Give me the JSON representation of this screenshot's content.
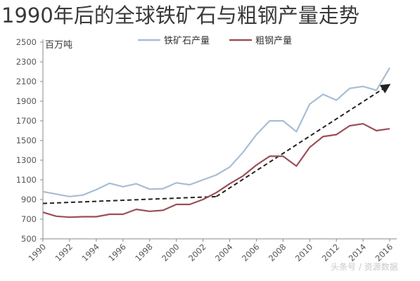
{
  "page": {
    "title": "1990年后的全球铁矿石与粗钢产量走势"
  },
  "colors": {
    "iron_ore": "#a9bdd3",
    "steel": "#9a4f57",
    "trend": "#222222",
    "axis": "#888888",
    "watermark": "#c9c9c9"
  },
  "watermark": "头条号 / 资源数据",
  "chart_data": {
    "type": "line",
    "title": "",
    "unit_label": "百万吨",
    "xlabel": "",
    "ylabel": "",
    "ylim": [
      500,
      2500
    ],
    "yticks": [
      500,
      700,
      900,
      1100,
      1300,
      1500,
      1700,
      1900,
      2100,
      2300,
      2500
    ],
    "xlim": [
      1990,
      2016
    ],
    "xticks": [
      1990,
      1992,
      1994,
      1996,
      1998,
      2000,
      2002,
      2004,
      2006,
      2008,
      2010,
      2012,
      2014,
      2016
    ],
    "grid": false,
    "legend_position": "top-center",
    "x": [
      1990,
      1991,
      1992,
      1993,
      1994,
      1995,
      1996,
      1997,
      1998,
      1999,
      2000,
      2001,
      2002,
      2003,
      2004,
      2005,
      2006,
      2007,
      2008,
      2009,
      2010,
      2011,
      2012,
      2013,
      2014,
      2015,
      2016
    ],
    "series": [
      {
        "name": "铁矿石产量",
        "color": "#a9bdd3",
        "values": [
          980,
          955,
          930,
          945,
          1000,
          1065,
          1030,
          1060,
          1005,
          1010,
          1070,
          1050,
          1100,
          1150,
          1230,
          1380,
          1560,
          1700,
          1700,
          1590,
          1870,
          1970,
          1910,
          2030,
          2050,
          2010,
          2240
        ]
      },
      {
        "name": "粗钢产量",
        "color": "#9a4f57",
        "values": [
          770,
          730,
          720,
          725,
          725,
          750,
          750,
          800,
          780,
          790,
          850,
          850,
          900,
          970,
          1060,
          1140,
          1250,
          1340,
          1340,
          1240,
          1430,
          1540,
          1560,
          1650,
          1670,
          1600,
          1620
        ]
      }
    ],
    "trend_arrows": [
      {
        "from": [
          1990,
          860
        ],
        "to": [
          2003,
          930
        ]
      },
      {
        "from": [
          2003,
          930
        ],
        "to": [
          2016,
          2070
        ]
      }
    ]
  }
}
